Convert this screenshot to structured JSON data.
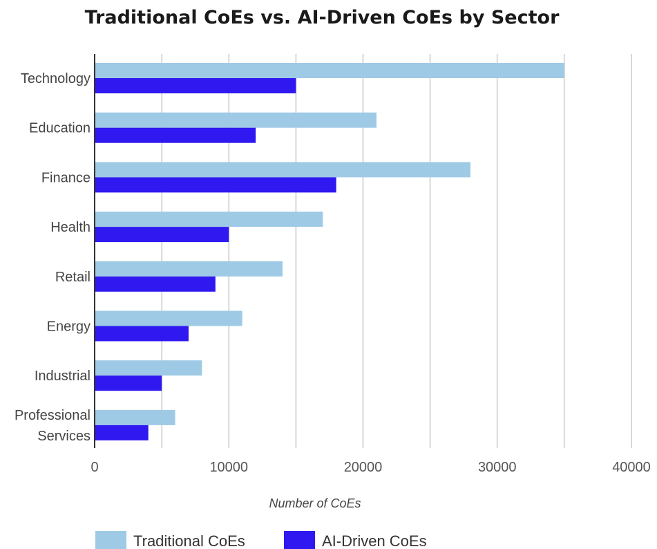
{
  "chart_data": {
    "type": "bar",
    "orientation": "horizontal",
    "title": "Traditional CoEs vs. AI-Driven CoEs by Sector",
    "xlabel": "Number of CoEs",
    "ylabel": "",
    "xlim": [
      0,
      40000
    ],
    "xticks": [
      "0",
      "10000",
      "20000",
      "30000",
      "40000"
    ],
    "xtick_values": [
      0,
      10000,
      20000,
      30000,
      40000
    ],
    "grid_step": 5000,
    "grid": true,
    "legend_position": "bottom-left",
    "categories": [
      [
        "Technology"
      ],
      [
        "Education"
      ],
      [
        "Finance"
      ],
      [
        "Health"
      ],
      [
        "Retail"
      ],
      [
        "Energy"
      ],
      [
        "Industrial"
      ],
      [
        "Professional",
        "Services"
      ]
    ],
    "series": [
      {
        "name": "Traditional CoEs",
        "color": "#9ecae6",
        "values": [
          35000,
          21000,
          28000,
          17000,
          14000,
          11000,
          8000,
          6000
        ]
      },
      {
        "name": "AI-Driven CoEs",
        "color": "#2f19f0",
        "values": [
          15000,
          12000,
          18000,
          10000,
          9000,
          7000,
          5000,
          4000
        ]
      }
    ]
  }
}
